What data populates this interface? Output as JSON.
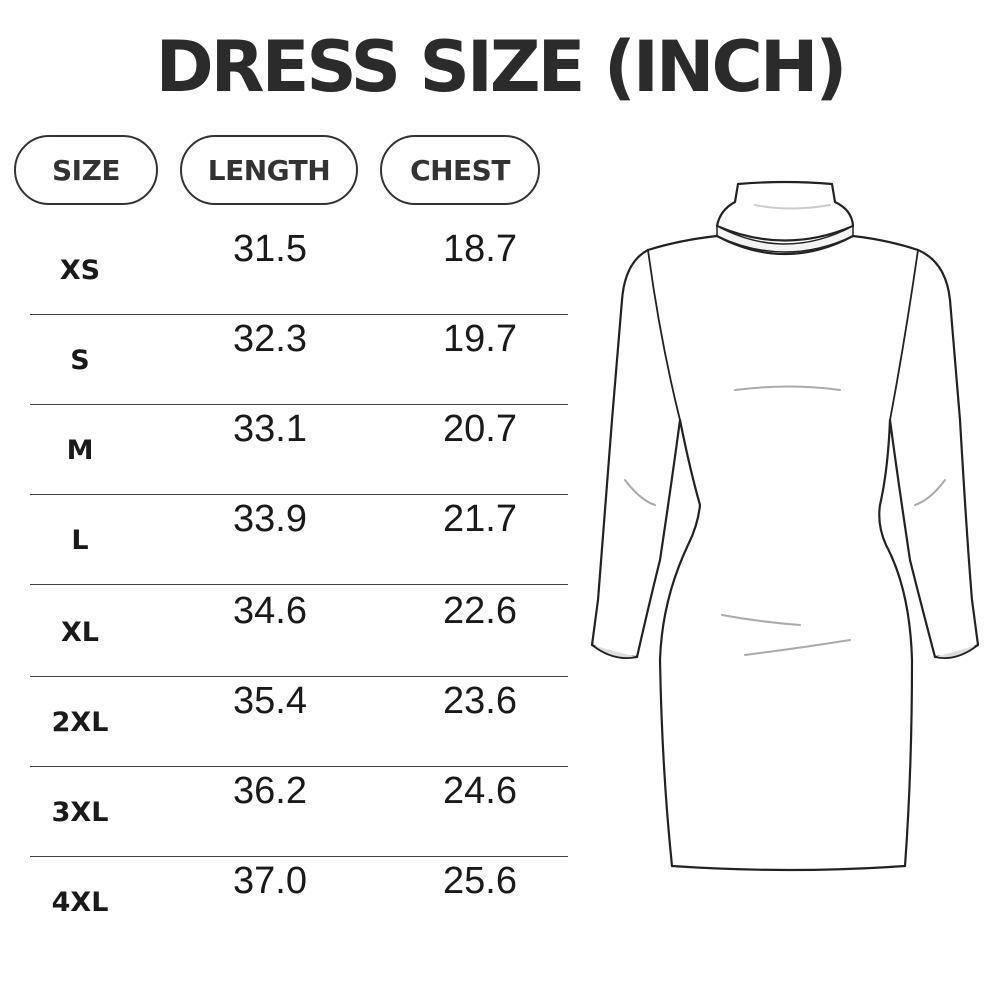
{
  "title": "DRESS SIZE (INCH)",
  "headers": [
    "SIZE",
    "LENGTH",
    "CHEST"
  ],
  "rows": [
    {
      "size": "XS",
      "length": "31.5",
      "chest": "18.7"
    },
    {
      "size": "S",
      "length": "32.3",
      "chest": "19.7"
    },
    {
      "size": "M",
      "length": "33.1",
      "chest": "20.7"
    },
    {
      "size": "L",
      "length": "33.9",
      "chest": "21.7"
    },
    {
      "size": "XL",
      "length": "34.6",
      "chest": "22.6"
    },
    {
      "size": "2XL",
      "length": "35.4",
      "chest": "23.6"
    },
    {
      "size": "3XL",
      "length": "36.2",
      "chest": "24.6"
    },
    {
      "size": "4XL",
      "length": "37.0",
      "chest": "25.6"
    }
  ],
  "illustration": "turtleneck-long-sleeve-bodycon-dress"
}
